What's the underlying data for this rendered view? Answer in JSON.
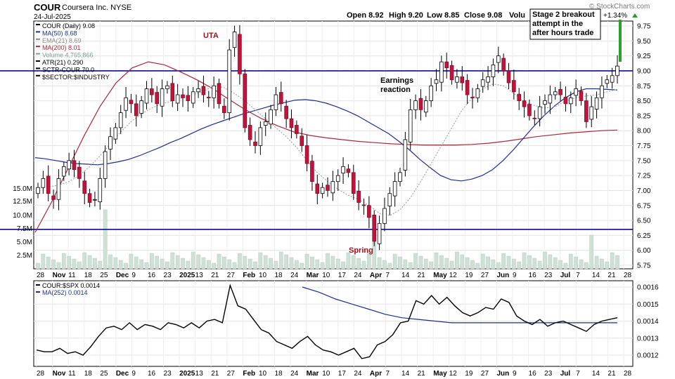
{
  "header": {
    "symbol": "COUR",
    "company": "Coursera Inc. NYSE",
    "date": "24-Jul-2025",
    "open": "Open 8.92",
    "high": "High 9.20",
    "low": "Low 8.85",
    "close": "Close 9.08",
    "volume_cut": "Volu",
    "change": "+1.34%",
    "brand": "© StockCharts.com"
  },
  "legend_main": [
    {
      "text": "COUR (Daily) 9.08",
      "color": "#000000"
    },
    {
      "text": "MA(50) 8.68",
      "color": "#1f2e8c"
    },
    {
      "text": "EMA(21) 8.69",
      "color": "#8a8a8a"
    },
    {
      "text": "MA(200) 8.01",
      "color": "#b0243a"
    },
    {
      "text": "Volume 4,765,866",
      "color": "#7f9f8f"
    },
    {
      "text": "ATR(21) 0.290",
      "color": "#000000"
    },
    {
      "text": "SCTR-COUR 70.0",
      "color": "#000000"
    },
    {
      "text": "$SECTOR:$INDUSTRY",
      "color": "#000000"
    }
  ],
  "legend_lower": [
    {
      "text": "COUR:$SPX 0.0014",
      "color": "#000000"
    },
    {
      "text": "MA(252) 0.0014",
      "color": "#1f2e8c"
    }
  ],
  "annotations": {
    "uta": "UTA",
    "spring": "Spring",
    "earnings_1": "Earnings",
    "earnings_2": "reaction",
    "stage2_1": "Stage 2 breakout",
    "stage2_2": "attempt in the",
    "stage2_3": "after hours trade"
  },
  "x_axis": [
    "28",
    "Nov",
    "11",
    "18",
    "25",
    "Dec",
    "9",
    "16",
    "23",
    "2025",
    "13",
    "21",
    "27",
    "Feb",
    "10",
    "18",
    "24",
    "Mar",
    "10",
    "17",
    "24",
    "Apr",
    "7",
    "14",
    "21",
    "May",
    "12",
    "19",
    "27",
    "Jun",
    "9",
    "16",
    "23",
    "Jul",
    "7",
    "14",
    "21",
    "28"
  ],
  "x_axis_bold": [
    "Nov",
    "Dec",
    "2025",
    "Feb",
    "Mar",
    "Apr",
    "May",
    "Jun",
    "Jul"
  ],
  "chart_data": [
    {
      "type": "candlestick",
      "title": "COUR Coursera Inc. NYSE",
      "y_ticks": [
        "9.75",
        "9.50",
        "9.25",
        "9.00",
        "8.75",
        "8.50",
        "8.25",
        "8.00",
        "7.75",
        "7.50",
        "7.25",
        "7.00",
        "6.75",
        "6.50",
        "6.25",
        "6.00",
        "5.75"
      ],
      "ylim": [
        5.7,
        9.85
      ],
      "volume_ticks": [
        "15.0M",
        "12.5M",
        "10.0M",
        "7.5M",
        "5.0M",
        "2.5M"
      ],
      "range_box": {
        "upper": 9.0,
        "lower": 6.35
      },
      "closes": [
        7.05,
        7.2,
        6.95,
        6.85,
        7.2,
        7.4,
        7.5,
        7.35,
        7.2,
        6.95,
        6.8,
        6.85,
        7.2,
        7.65,
        7.9,
        8.05,
        8.3,
        8.55,
        8.45,
        8.25,
        8.5,
        8.7,
        8.6,
        8.45,
        8.7,
        8.75,
        8.5,
        8.6,
        8.55,
        8.5,
        8.65,
        8.7,
        8.6,
        8.55,
        8.75,
        8.45,
        8.3,
        9.35,
        9.65,
        8.95,
        8.05,
        7.85,
        7.75,
        8.05,
        8.15,
        8.35,
        8.6,
        8.45,
        8.2,
        8.05,
        7.95,
        7.75,
        7.45,
        7.15,
        6.95,
        7.05,
        7.0,
        7.15,
        7.25,
        7.4,
        7.3,
        6.95,
        6.8,
        6.75,
        6.55,
        6.15,
        6.45,
        6.7,
        6.95,
        7.15,
        7.3,
        7.85,
        8.35,
        8.5,
        8.35,
        8.5,
        8.75,
        8.85,
        9.15,
        9.05,
        8.85,
        8.9,
        8.8,
        8.6,
        8.55,
        8.7,
        8.85,
        8.9,
        9.1,
        9.25,
        9.0,
        8.8,
        8.65,
        8.5,
        8.4,
        8.25,
        8.2,
        8.4,
        8.5,
        8.6,
        8.65,
        8.6,
        8.45,
        8.55,
        8.7,
        8.5,
        8.15,
        8.4,
        8.55,
        8.75,
        8.85,
        8.92,
        9.08
      ],
      "ma50": [
        7.55,
        7.53,
        7.5,
        7.47,
        7.45,
        7.44,
        7.43,
        7.45,
        7.48,
        7.52,
        7.58,
        7.65,
        7.72,
        7.8,
        7.87,
        7.95,
        8.03,
        8.1,
        8.16,
        8.22,
        8.28,
        8.33,
        8.38,
        8.43,
        8.47,
        8.51,
        8.52,
        8.5,
        8.46,
        8.4,
        8.33,
        8.25,
        8.15,
        8.05,
        7.95,
        7.82,
        7.68,
        7.52,
        7.38,
        7.25,
        7.18,
        7.16,
        7.19,
        7.25,
        7.35,
        7.5,
        7.68,
        7.88,
        8.08,
        8.26,
        8.42,
        8.55,
        8.65,
        8.7,
        8.7,
        8.69,
        8.68
      ],
      "ema21": [
        7.05,
        7.06,
        7.09,
        7.15,
        7.25,
        7.4,
        7.58,
        7.78,
        7.98,
        8.15,
        8.28,
        8.38,
        8.45,
        8.5,
        8.55,
        8.6,
        8.66,
        8.75,
        8.72,
        8.62,
        8.5,
        8.35,
        8.2,
        8.05,
        7.9,
        7.72,
        7.5,
        7.3,
        7.15,
        7.02,
        6.92,
        6.85,
        6.75,
        6.62,
        6.58,
        6.68,
        6.88,
        7.15,
        7.45,
        7.75,
        8.05,
        8.35,
        8.55,
        8.7,
        8.78,
        8.75,
        8.62,
        8.48,
        8.42,
        8.38,
        8.4,
        8.5,
        8.55,
        8.58,
        8.6,
        8.65,
        8.69
      ],
      "ma200": [
        6.3,
        6.8,
        7.35,
        7.9,
        8.4,
        8.8,
        9.05,
        9.15,
        9.1,
        8.98,
        8.85,
        8.7,
        8.52,
        8.35,
        8.2,
        8.08,
        7.98,
        7.92,
        7.88,
        7.85,
        7.82,
        7.8,
        7.78,
        7.77,
        7.76,
        7.76,
        7.76,
        7.77,
        7.79,
        7.82,
        7.86,
        7.9,
        7.93,
        7.96,
        7.98,
        8.0,
        8.01
      ]
    },
    {
      "type": "line",
      "title": "COUR:$SPX",
      "y_ticks": [
        "0.0016",
        "0.0015",
        "0.0014",
        "0.0013",
        "0.0012"
      ],
      "ylim": [
        0.00115,
        0.00164
      ],
      "series": [
        {
          "name": "COUR:$SPX",
          "values": [
            0.00123,
            0.00122,
            0.00122,
            0.00124,
            0.00121,
            0.00122,
            0.0012,
            0.00125,
            0.00131,
            0.00136,
            0.00137,
            0.00135,
            0.00139,
            0.00135,
            0.00138,
            0.00137,
            0.00135,
            0.00139,
            0.00138,
            0.00136,
            0.00139,
            0.00136,
            0.0014,
            0.00141,
            0.00139,
            0.00161,
            0.00149,
            0.00147,
            0.00141,
            0.00135,
            0.00133,
            0.00128,
            0.00126,
            0.00124,
            0.00128,
            0.00131,
            0.00126,
            0.00123,
            0.00122,
            0.0012,
            0.00122,
            0.00124,
            0.00118,
            0.00119,
            0.00126,
            0.00128,
            0.00132,
            0.00139,
            0.0014,
            0.00152,
            0.0015,
            0.00155,
            0.0015,
            0.00154,
            0.00149,
            0.00145,
            0.00143,
            0.00145,
            0.00148,
            0.00147,
            0.00153,
            0.00151,
            0.00143,
            0.0014,
            0.00138,
            0.00141,
            0.00137,
            0.00139,
            0.0014,
            0.00138,
            0.00136,
            0.00134,
            0.00138,
            0.0014,
            0.00141,
            0.00142
          ]
        },
        {
          "name": "MA(252)",
          "values": [
            0.0016,
            0.00157,
            0.00153,
            0.0015,
            0.00147,
            0.00144,
            0.00142,
            0.00141,
            0.0014,
            0.00139,
            0.00139,
            0.00139,
            0.00139,
            0.00139,
            0.00139,
            0.00139,
            0.00139,
            0.00139,
            0.00139,
            0.00139
          ]
        }
      ]
    }
  ]
}
